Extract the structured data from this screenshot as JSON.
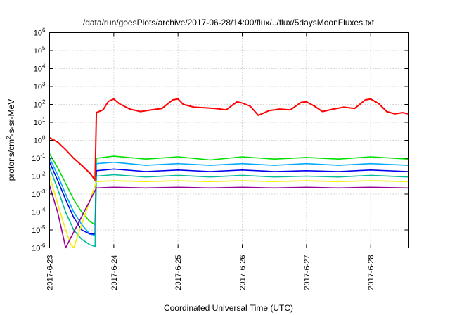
{
  "chart_data": {
    "type": "line",
    "title": "/data/run/goesPlots/archive/2017-06-28/14:00/flux/../flux/5daysMoonFluxes.txt",
    "xlabel": "Coordinated Universal Time (UTC)",
    "ylabel_parts": [
      "protons/cm",
      "2",
      "-s-sr-MeV"
    ],
    "x_scale": "time",
    "xlim": [
      "2017-06-23T00:00",
      "2017-06-28T14:00"
    ],
    "y_scale": "log",
    "ylim": [
      1e-06,
      1000000
    ],
    "grid": true,
    "legend": "none",
    "x_ticks": [
      {
        "label": "2017-6-23",
        "t": "2017-06-23T00:00"
      },
      {
        "label": "2017-6-24",
        "t": "2017-06-24T00:00"
      },
      {
        "label": "2017-6-25",
        "t": "2017-06-25T00:00"
      },
      {
        "label": "2017-6-26",
        "t": "2017-06-26T00:00"
      },
      {
        "label": "2017-6-27",
        "t": "2017-06-27T00:00"
      },
      {
        "label": "2017-6-28",
        "t": "2017-06-28T00:00"
      }
    ],
    "y_ticks": [
      {
        "base": "10",
        "exp": "-6",
        "value": 1e-06
      },
      {
        "base": "10",
        "exp": "-5",
        "value": 1e-05
      },
      {
        "base": "10",
        "exp": "-4",
        "value": 0.0001
      },
      {
        "base": "10",
        "exp": "-3",
        "value": 0.001
      },
      {
        "base": "10",
        "exp": "-2",
        "value": 0.01
      },
      {
        "base": "10",
        "exp": "-1",
        "value": 0.1
      },
      {
        "base": "10",
        "exp": "0",
        "value": 1
      },
      {
        "base": "10",
        "exp": "1",
        "value": 10
      },
      {
        "base": "10",
        "exp": "2",
        "value": 100
      },
      {
        "base": "10",
        "exp": "3",
        "value": 1000
      },
      {
        "base": "10",
        "exp": "4",
        "value": 10000
      },
      {
        "base": "10",
        "exp": "5",
        "value": 100000
      },
      {
        "base": "10",
        "exp": "6",
        "value": 1000000
      }
    ],
    "series": [
      {
        "color": "#ff0000",
        "points": [
          [
            "2017-06-23T00:00",
            1.4
          ],
          [
            "2017-06-23T03:00",
            0.8
          ],
          [
            "2017-06-23T06:00",
            0.3
          ],
          [
            "2017-06-23T09:00",
            0.1
          ],
          [
            "2017-06-23T12:00",
            0.04
          ],
          [
            "2017-06-23T15:00",
            0.015
          ],
          [
            "2017-06-23T17:00",
            0.006
          ],
          [
            "2017-06-23T17:30",
            35
          ],
          [
            "2017-06-23T20:00",
            50
          ],
          [
            "2017-06-23T22:00",
            150
          ],
          [
            "2017-06-24T00:00",
            200
          ],
          [
            "2017-06-24T02:00",
            110
          ],
          [
            "2017-06-24T06:00",
            55
          ],
          [
            "2017-06-24T10:00",
            40
          ],
          [
            "2017-06-24T14:00",
            50
          ],
          [
            "2017-06-24T18:00",
            60
          ],
          [
            "2017-06-24T22:00",
            180
          ],
          [
            "2017-06-25T00:00",
            200
          ],
          [
            "2017-06-25T02:00",
            100
          ],
          [
            "2017-06-25T06:00",
            70
          ],
          [
            "2017-06-25T10:00",
            65
          ],
          [
            "2017-06-25T14:00",
            60
          ],
          [
            "2017-06-25T18:00",
            50
          ],
          [
            "2017-06-25T22:00",
            140
          ],
          [
            "2017-06-26T00:00",
            120
          ],
          [
            "2017-06-26T03:00",
            80
          ],
          [
            "2017-06-26T06:00",
            25
          ],
          [
            "2017-06-26T10:00",
            45
          ],
          [
            "2017-06-26T14:00",
            55
          ],
          [
            "2017-06-26T18:00",
            50
          ],
          [
            "2017-06-26T22:00",
            130
          ],
          [
            "2017-06-27T00:00",
            140
          ],
          [
            "2017-06-27T03:00",
            80
          ],
          [
            "2017-06-27T06:00",
            40
          ],
          [
            "2017-06-27T10:00",
            55
          ],
          [
            "2017-06-27T14:00",
            70
          ],
          [
            "2017-06-27T18:00",
            60
          ],
          [
            "2017-06-27T22:00",
            180
          ],
          [
            "2017-06-28T00:00",
            200
          ],
          [
            "2017-06-28T03:00",
            110
          ],
          [
            "2017-06-28T06:00",
            40
          ],
          [
            "2017-06-28T09:00",
            30
          ],
          [
            "2017-06-28T12:00",
            35
          ],
          [
            "2017-06-28T14:00",
            30
          ]
        ]
      },
      {
        "color": "#00e000",
        "points": [
          [
            "2017-06-23T00:00",
            0.18
          ],
          [
            "2017-06-23T03:00",
            0.03
          ],
          [
            "2017-06-23T06:00",
            0.004
          ],
          [
            "2017-06-23T09:00",
            0.0005
          ],
          [
            "2017-06-23T12:00",
            0.0001
          ],
          [
            "2017-06-23T15:00",
            3e-05
          ],
          [
            "2017-06-23T17:00",
            2e-05
          ],
          [
            "2017-06-23T17:30",
            0.1
          ],
          [
            "2017-06-24T00:00",
            0.13
          ],
          [
            "2017-06-24T12:00",
            0.09
          ],
          [
            "2017-06-25T00:00",
            0.12
          ],
          [
            "2017-06-25T12:00",
            0.08
          ],
          [
            "2017-06-26T00:00",
            0.12
          ],
          [
            "2017-06-26T12:00",
            0.09
          ],
          [
            "2017-06-27T00:00",
            0.11
          ],
          [
            "2017-06-27T12:00",
            0.09
          ],
          [
            "2017-06-28T00:00",
            0.12
          ],
          [
            "2017-06-28T14:00",
            0.09
          ]
        ]
      },
      {
        "color": "#00aaff",
        "points": [
          [
            "2017-06-23T00:00",
            0.1
          ],
          [
            "2017-06-23T03:00",
            0.012
          ],
          [
            "2017-06-23T06:00",
            0.001
          ],
          [
            "2017-06-23T09:00",
            0.0001
          ],
          [
            "2017-06-23T12:00",
            2e-05
          ],
          [
            "2017-06-23T15:00",
            6e-06
          ],
          [
            "2017-06-23T17:00",
            5e-06
          ],
          [
            "2017-06-23T17:30",
            0.05
          ],
          [
            "2017-06-24T00:00",
            0.06
          ],
          [
            "2017-06-24T12:00",
            0.04
          ],
          [
            "2017-06-25T00:00",
            0.05
          ],
          [
            "2017-06-25T12:00",
            0.04
          ],
          [
            "2017-06-26T00:00",
            0.05
          ],
          [
            "2017-06-26T12:00",
            0.04
          ],
          [
            "2017-06-27T00:00",
            0.05
          ],
          [
            "2017-06-27T12:00",
            0.04
          ],
          [
            "2017-06-28T00:00",
            0.05
          ],
          [
            "2017-06-28T14:00",
            0.04
          ]
        ]
      },
      {
        "color": "#0000ee",
        "points": [
          [
            "2017-06-23T00:00",
            0.06
          ],
          [
            "2017-06-23T03:00",
            0.006
          ],
          [
            "2017-06-23T06:00",
            0.0005
          ],
          [
            "2017-06-23T09:00",
            5e-05
          ],
          [
            "2017-06-23T12:00",
            1e-05
          ],
          [
            "2017-06-23T15:00",
            6e-06
          ],
          [
            "2017-06-23T17:00",
            6e-06
          ],
          [
            "2017-06-23T17:30",
            0.02
          ],
          [
            "2017-06-24T00:00",
            0.025
          ],
          [
            "2017-06-24T12:00",
            0.018
          ],
          [
            "2017-06-25T00:00",
            0.022
          ],
          [
            "2017-06-25T12:00",
            0.018
          ],
          [
            "2017-06-26T00:00",
            0.022
          ],
          [
            "2017-06-26T12:00",
            0.018
          ],
          [
            "2017-06-27T00:00",
            0.02
          ],
          [
            "2017-06-27T12:00",
            0.018
          ],
          [
            "2017-06-28T00:00",
            0.022
          ],
          [
            "2017-06-28T14:00",
            0.018
          ]
        ]
      },
      {
        "color": "#00bb99",
        "points": [
          [
            "2017-06-23T00:00",
            0.03
          ],
          [
            "2017-06-23T03:00",
            0.002
          ],
          [
            "2017-06-23T06:00",
            0.0001
          ],
          [
            "2017-06-23T09:00",
            1e-05
          ],
          [
            "2017-06-23T12:00",
            3e-06
          ],
          [
            "2017-06-23T15:00",
            1.5e-06
          ],
          [
            "2017-06-23T17:00",
            1.2e-06
          ],
          [
            "2017-06-23T17:30",
            0.01
          ],
          [
            "2017-06-24T00:00",
            0.012
          ],
          [
            "2017-06-24T12:00",
            0.009
          ],
          [
            "2017-06-25T00:00",
            0.011
          ],
          [
            "2017-06-25T12:00",
            0.009
          ],
          [
            "2017-06-26T00:00",
            0.011
          ],
          [
            "2017-06-26T12:00",
            0.009
          ],
          [
            "2017-06-27T00:00",
            0.01
          ],
          [
            "2017-06-27T12:00",
            0.009
          ],
          [
            "2017-06-28T00:00",
            0.011
          ],
          [
            "2017-06-28T14:00",
            0.009
          ]
        ]
      },
      {
        "color": "#f0f000",
        "points": [
          [
            "2017-06-23T00:00",
            0.01
          ],
          [
            "2017-06-23T03:00",
            0.0003
          ],
          [
            "2017-06-23T06:00",
            1e-05
          ],
          [
            "2017-06-23T08:00",
            1.5e-06
          ],
          [
            "2017-06-23T09:00",
            1e-06
          ],
          [
            "2017-06-23T17:30",
            0.005
          ],
          [
            "2017-06-24T00:00",
            0.0055
          ],
          [
            "2017-06-24T12:00",
            0.005
          ],
          [
            "2017-06-25T00:00",
            0.0055
          ],
          [
            "2017-06-25T12:00",
            0.005
          ],
          [
            "2017-06-26T00:00",
            0.0055
          ],
          [
            "2017-06-26T12:00",
            0.005
          ],
          [
            "2017-06-27T00:00",
            0.0055
          ],
          [
            "2017-06-27T12:00",
            0.005
          ],
          [
            "2017-06-28T00:00",
            0.0055
          ],
          [
            "2017-06-28T14:00",
            0.005
          ]
        ]
      },
      {
        "color": "#990099",
        "points": [
          [
            "2017-06-23T00:00",
            0.003
          ],
          [
            "2017-06-23T03:00",
            0.0001
          ],
          [
            "2017-06-23T05:00",
            5e-06
          ],
          [
            "2017-06-23T06:00",
            1e-06
          ],
          [
            "2017-06-23T17:30",
            0.0022
          ],
          [
            "2017-06-24T00:00",
            0.0024
          ],
          [
            "2017-06-24T12:00",
            0.0022
          ],
          [
            "2017-06-25T00:00",
            0.0024
          ],
          [
            "2017-06-25T12:00",
            0.0022
          ],
          [
            "2017-06-26T00:00",
            0.0024
          ],
          [
            "2017-06-26T12:00",
            0.0022
          ],
          [
            "2017-06-27T00:00",
            0.0024
          ],
          [
            "2017-06-27T12:00",
            0.0022
          ],
          [
            "2017-06-28T00:00",
            0.0024
          ],
          [
            "2017-06-28T14:00",
            0.0022
          ]
        ]
      }
    ]
  }
}
